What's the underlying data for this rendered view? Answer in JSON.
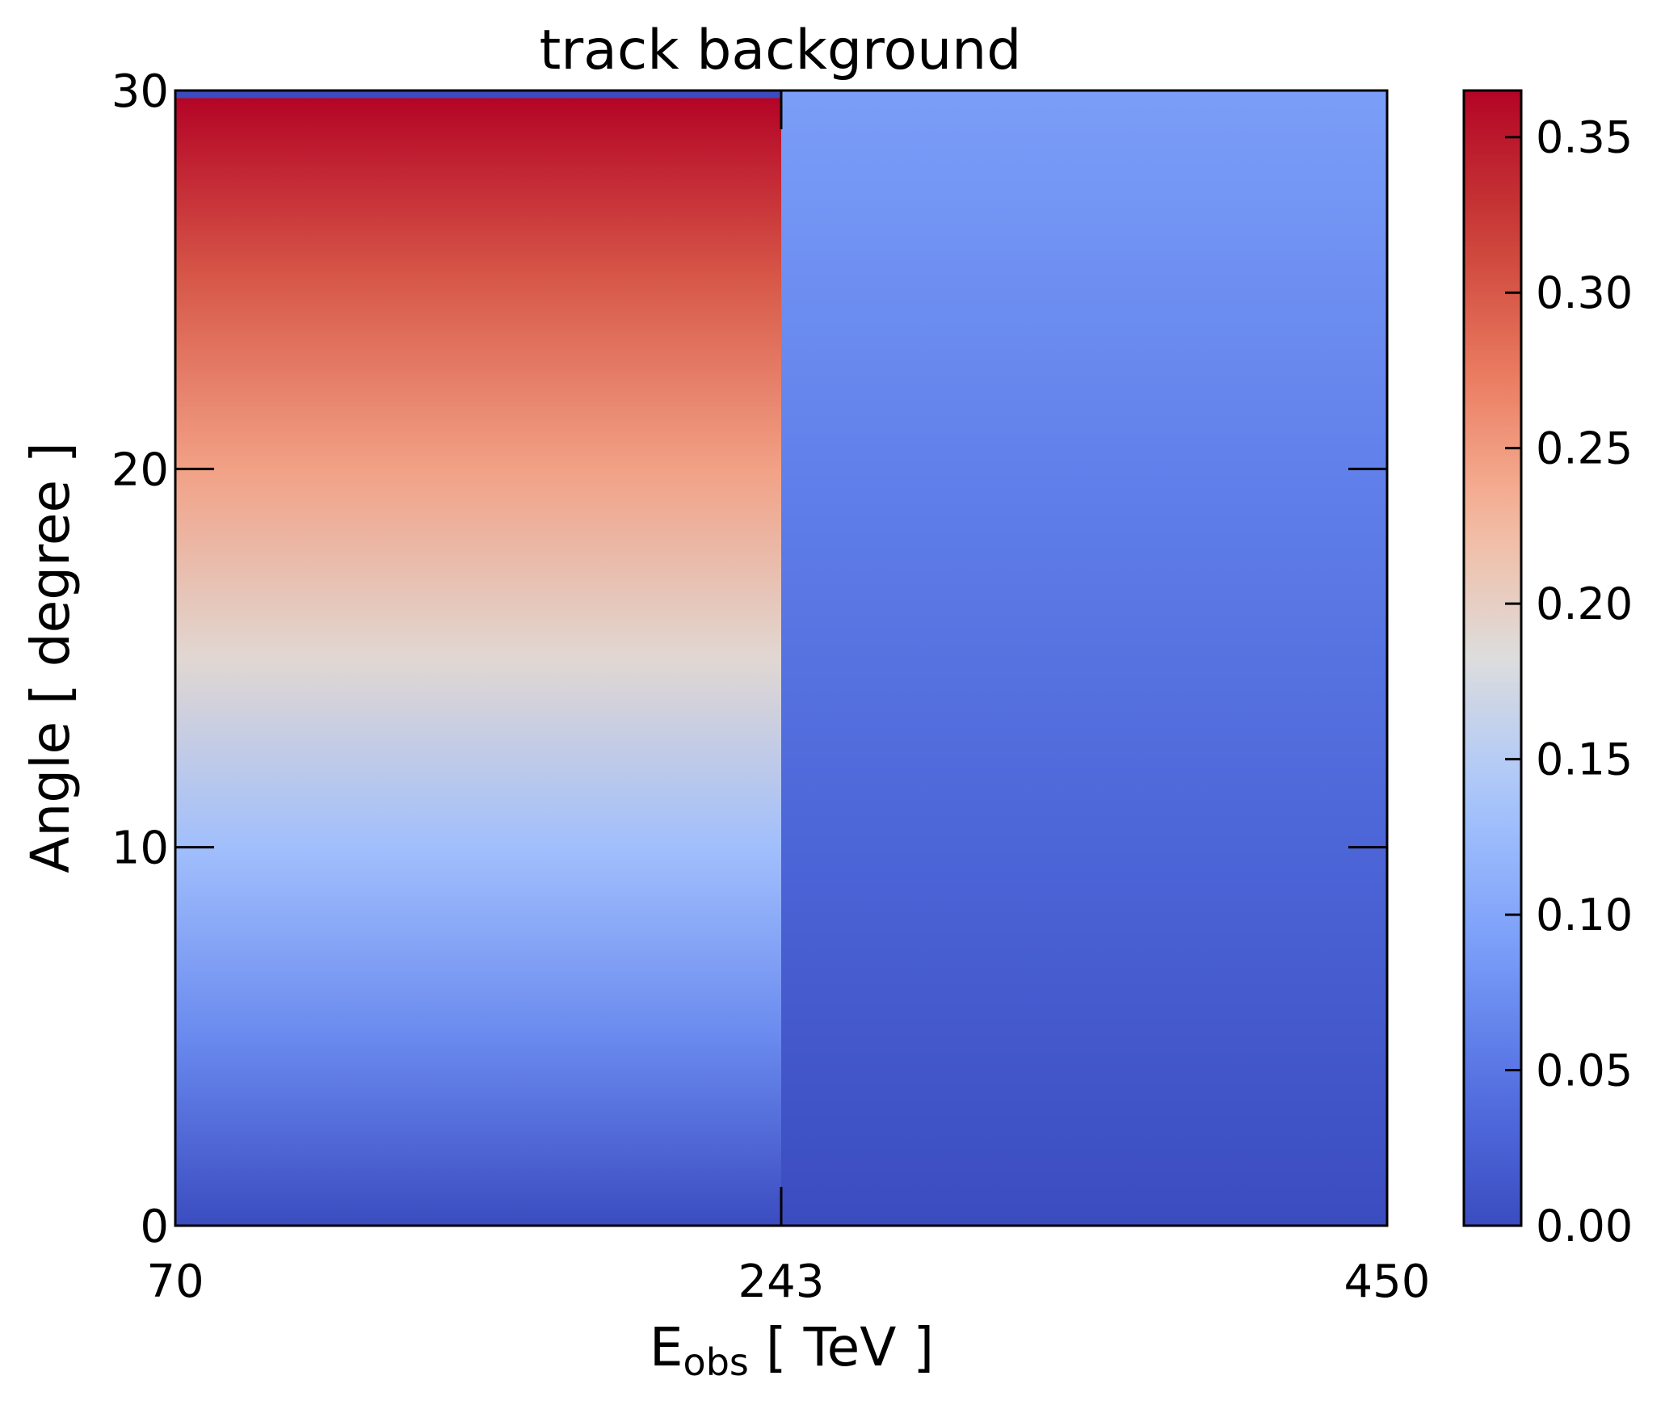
{
  "chart_data": {
    "type": "heatmap",
    "title": "track background",
    "xlabel": {
      "main": "E",
      "sub": "obs",
      "unit": " [ TeV ]"
    },
    "ylabel": "Angle [ degree ]",
    "x_edges": [
      70,
      243,
      450
    ],
    "x_tick_labels": [
      "70",
      "243",
      "450"
    ],
    "y_ticks": [
      0,
      10,
      20,
      30
    ],
    "y_tick_labels": [
      "0",
      "10",
      "20",
      "30"
    ],
    "ylim": [
      0,
      30
    ],
    "colormap": "coolwarm",
    "color_range": [
      0,
      0.365
    ],
    "colorbar_ticks": [
      0.0,
      0.05,
      0.1,
      0.15,
      0.2,
      0.25,
      0.3,
      0.35
    ],
    "colorbar_tick_labels": [
      "0.00",
      "0.05",
      "0.10",
      "0.15",
      "0.20",
      "0.25",
      "0.30",
      "0.35"
    ],
    "columns": [
      {
        "x_range": [
          70,
          243
        ],
        "y_range": [
          0,
          30
        ],
        "profile": [
          {
            "y": 0,
            "value": 0.0
          },
          {
            "y": 5,
            "value": 0.07
          },
          {
            "y": 10,
            "value": 0.13
          },
          {
            "y": 15,
            "value": 0.19
          },
          {
            "y": 20,
            "value": 0.245
          },
          {
            "y": 25,
            "value": 0.3
          },
          {
            "y": 29.8,
            "value": 0.365
          },
          {
            "y": 30,
            "value": 0.0
          }
        ]
      },
      {
        "x_range": [
          243,
          450
        ],
        "y_range": [
          0,
          30
        ],
        "profile": [
          {
            "y": 0,
            "value": 0.0
          },
          {
            "y": 10,
            "value": 0.03
          },
          {
            "y": 20,
            "value": 0.06
          },
          {
            "y": 30,
            "value": 0.09
          }
        ]
      }
    ],
    "grid": false,
    "legend": "none"
  }
}
